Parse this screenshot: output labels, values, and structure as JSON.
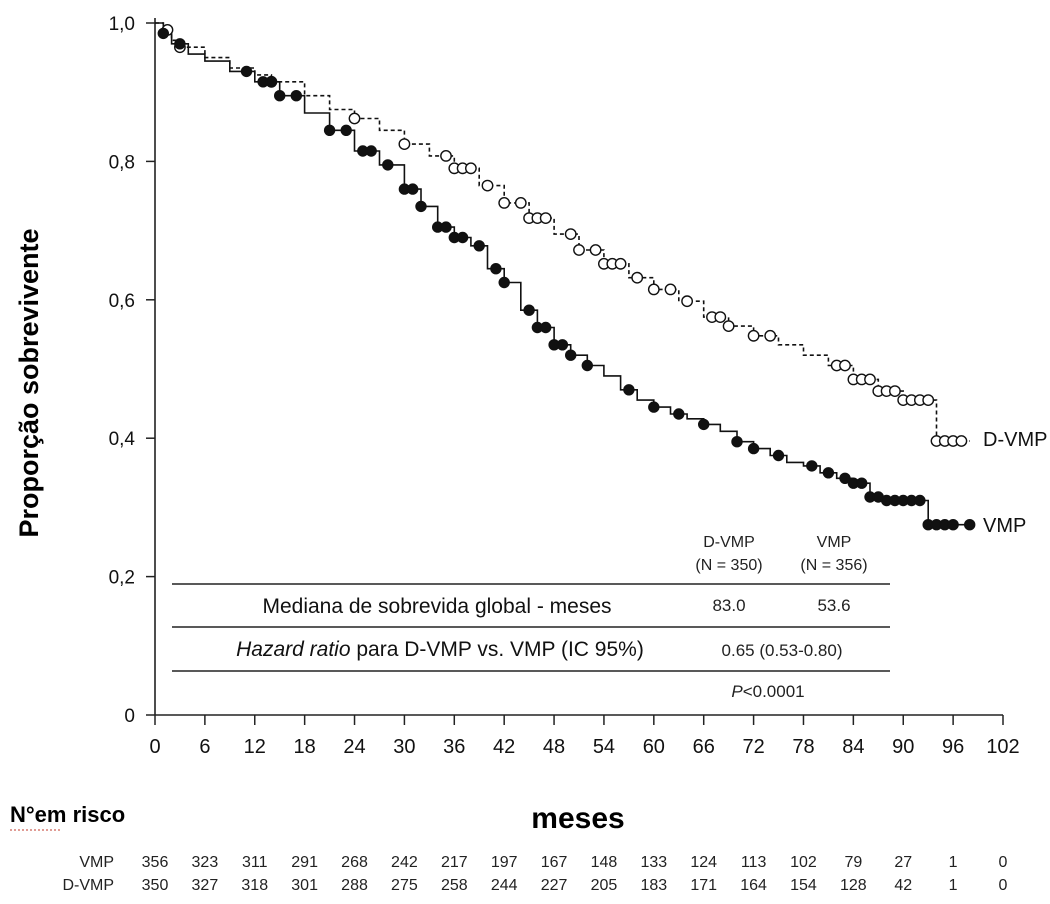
{
  "chart_data": {
    "type": "line",
    "ylabel": "Proporção sobrevivente",
    "xlabel": "meses",
    "xlim": [
      0,
      102
    ],
    "ylim": [
      0,
      1.0
    ],
    "x_ticks": [
      0,
      6,
      12,
      18,
      24,
      30,
      36,
      42,
      48,
      54,
      60,
      66,
      72,
      78,
      84,
      90,
      96,
      102
    ],
    "y_ticks": [
      {
        "value": 0,
        "label": "0"
      },
      {
        "value": 0.2,
        "label": "0,2"
      },
      {
        "value": 0.4,
        "label": "0,4"
      },
      {
        "value": 0.6,
        "label": "0,6"
      },
      {
        "value": 0.8,
        "label": "0,8"
      },
      {
        "value": 1.0,
        "label": "1,0"
      }
    ],
    "series": [
      {
        "name": "D-VMP",
        "marker": "open-circle",
        "line_style": "dashed",
        "color": "#111111",
        "points": [
          [
            0,
            1.0
          ],
          [
            1,
            0.99
          ],
          [
            2,
            0.975
          ],
          [
            3,
            0.965
          ],
          [
            6,
            0.95
          ],
          [
            9,
            0.935
          ],
          [
            12,
            0.925
          ],
          [
            14,
            0.915
          ],
          [
            18,
            0.895
          ],
          [
            21,
            0.875
          ],
          [
            24,
            0.862
          ],
          [
            27,
            0.845
          ],
          [
            30,
            0.825
          ],
          [
            33,
            0.808
          ],
          [
            36,
            0.79
          ],
          [
            39,
            0.765
          ],
          [
            42,
            0.74
          ],
          [
            45,
            0.718
          ],
          [
            48,
            0.695
          ],
          [
            51,
            0.672
          ],
          [
            54,
            0.652
          ],
          [
            57,
            0.632
          ],
          [
            60,
            0.615
          ],
          [
            63,
            0.598
          ],
          [
            66,
            0.575
          ],
          [
            69,
            0.562
          ],
          [
            72,
            0.548
          ],
          [
            75,
            0.535
          ],
          [
            78,
            0.52
          ],
          [
            81,
            0.505
          ],
          [
            84,
            0.485
          ],
          [
            87,
            0.468
          ],
          [
            90,
            0.455
          ],
          [
            94,
            0.455
          ],
          [
            94,
            0.396
          ],
          [
            98,
            0.396
          ]
        ],
        "censored": [
          1.5,
          3,
          14,
          24,
          30,
          35,
          36,
          37,
          38,
          40,
          42,
          44,
          45,
          46,
          47,
          50,
          51,
          53,
          54,
          55,
          56,
          58,
          60,
          62,
          64,
          67,
          68,
          69,
          72,
          74,
          82,
          83,
          84,
          85,
          86,
          87,
          88,
          89,
          90,
          91,
          92,
          93,
          94,
          95,
          96,
          97
        ]
      },
      {
        "name": "VMP",
        "marker": "filled-circle",
        "line_style": "solid",
        "color": "#111111",
        "points": [
          [
            0,
            1.0
          ],
          [
            1,
            0.985
          ],
          [
            2,
            0.97
          ],
          [
            4,
            0.955
          ],
          [
            6,
            0.945
          ],
          [
            9,
            0.93
          ],
          [
            12,
            0.915
          ],
          [
            15,
            0.895
          ],
          [
            18,
            0.87
          ],
          [
            21,
            0.845
          ],
          [
            24,
            0.815
          ],
          [
            27,
            0.795
          ],
          [
            30,
            0.76
          ],
          [
            32,
            0.735
          ],
          [
            34,
            0.705
          ],
          [
            36,
            0.69
          ],
          [
            38,
            0.678
          ],
          [
            40,
            0.645
          ],
          [
            42,
            0.625
          ],
          [
            44,
            0.585
          ],
          [
            46,
            0.56
          ],
          [
            48,
            0.535
          ],
          [
            50,
            0.52
          ],
          [
            52,
            0.505
          ],
          [
            54,
            0.49
          ],
          [
            56,
            0.47
          ],
          [
            58,
            0.455
          ],
          [
            60,
            0.445
          ],
          [
            62,
            0.435
          ],
          [
            64,
            0.428
          ],
          [
            66,
            0.42
          ],
          [
            68,
            0.41
          ],
          [
            70,
            0.395
          ],
          [
            72,
            0.385
          ],
          [
            74,
            0.375
          ],
          [
            76,
            0.365
          ],
          [
            78,
            0.36
          ],
          [
            80,
            0.35
          ],
          [
            82,
            0.342
          ],
          [
            84,
            0.335
          ],
          [
            86,
            0.315
          ],
          [
            88,
            0.31
          ],
          [
            93,
            0.31
          ],
          [
            93,
            0.275
          ],
          [
            98,
            0.275
          ]
        ],
        "censored": [
          1,
          3,
          11,
          13,
          14,
          15,
          17,
          21,
          23,
          25,
          26,
          28,
          30,
          31,
          32,
          34,
          35,
          36,
          37,
          39,
          41,
          42,
          45,
          46,
          47,
          48,
          49,
          50,
          52,
          57,
          60,
          63,
          66,
          70,
          72,
          75,
          79,
          81,
          83,
          84,
          85,
          86,
          87,
          88,
          89,
          90,
          91,
          92,
          93,
          94,
          95,
          96,
          98
        ]
      }
    ],
    "summary_table": {
      "col_headers": [
        {
          "name": "D-VMP",
          "n": "(N = 350)"
        },
        {
          "name": "VMP",
          "n": "(N = 356)"
        }
      ],
      "row1_label": "Mediana de sobrevida global - meses",
      "row1_values": [
        "83.0",
        "53.6"
      ],
      "row2_label_italic": "Hazard ratio",
      "row2_label_rest": " para D-VMP vs. VMP (IC 95%)",
      "row2_value": "0.65 (0.53-0.80)",
      "p_italic": "P",
      "p_rest": "<0.0001"
    },
    "risk_table": {
      "title": "N°em risco",
      "rows": [
        {
          "label": "VMP",
          "values": [
            "356",
            "323",
            "311",
            "291",
            "268",
            "242",
            "217",
            "197",
            "167",
            "148",
            "133",
            "124",
            "113",
            "102",
            "79",
            "27",
            "1",
            "0"
          ]
        },
        {
          "label": "D-VMP",
          "values": [
            "350",
            "327",
            "318",
            "301",
            "288",
            "275",
            "258",
            "244",
            "227",
            "205",
            "183",
            "171",
            "164",
            "154",
            "128",
            "42",
            "1",
            "0"
          ]
        }
      ]
    }
  }
}
